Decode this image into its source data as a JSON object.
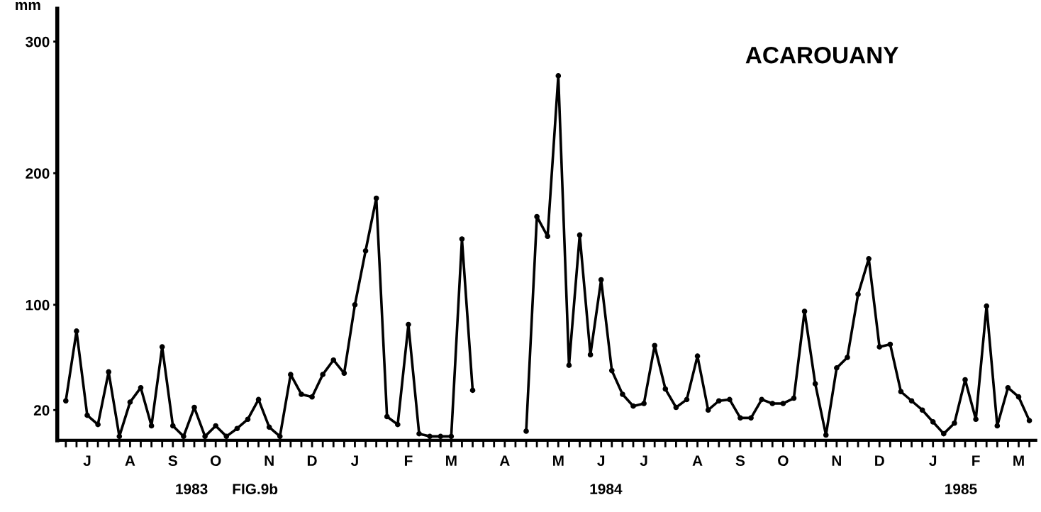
{
  "chart_data": {
    "type": "line",
    "title": "ACAROUANY",
    "ylabel": "mm",
    "annotations": [
      "1983",
      "FIG.9b",
      "1984",
      "1985"
    ],
    "categories": [
      null,
      null,
      "J",
      null,
      null,
      null,
      "A",
      null,
      null,
      null,
      "S",
      null,
      null,
      null,
      "O",
      null,
      null,
      null,
      null,
      "N",
      null,
      null,
      null,
      "D",
      null,
      null,
      null,
      "J",
      null,
      null,
      null,
      null,
      "F",
      null,
      null,
      null,
      "M",
      null,
      null,
      null,
      null,
      "A",
      null,
      null,
      null,
      null,
      "M",
      null,
      null,
      null,
      "J",
      null,
      null,
      null,
      "J",
      null,
      null,
      null,
      null,
      "A",
      null,
      null,
      null,
      "S",
      null,
      null,
      null,
      "O",
      null,
      null,
      null,
      null,
      "N",
      null,
      null,
      null,
      "D",
      null,
      null,
      null,
      null,
      "J",
      null,
      null,
      null,
      "F",
      null,
      null,
      null,
      "M",
      null
    ],
    "series": [
      {
        "color": "#000000",
        "values": [
          27,
          80,
          16,
          9,
          49,
          0,
          26,
          37,
          8,
          68,
          8,
          0,
          22,
          0,
          8,
          0,
          6,
          13,
          28,
          7,
          0,
          47,
          32,
          30,
          47,
          58,
          48,
          100,
          141,
          181,
          15,
          9,
          85,
          2,
          0,
          0,
          0,
          150,
          35,
          null,
          null,
          null,
          null,
          4,
          167,
          152,
          274,
          54,
          153,
          62,
          119,
          50,
          32,
          23,
          25,
          69,
          36,
          22,
          28,
          61,
          20,
          27,
          28,
          14,
          14,
          28,
          25,
          25,
          29,
          95,
          40,
          1,
          52,
          60,
          108,
          135,
          68,
          70,
          34,
          27,
          20,
          11,
          2,
          10,
          43,
          13,
          99,
          8,
          37,
          30,
          12
        ]
      }
    ],
    "ylim": [
      -3,
      325
    ],
    "yticks": [
      20,
      100,
      200,
      300
    ],
    "grid": false,
    "legend": false,
    "marker": "circle",
    "line_style": "solid"
  }
}
